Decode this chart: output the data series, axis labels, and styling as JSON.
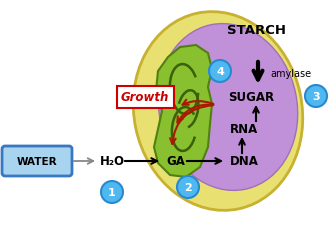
{
  "bg_color": "#ffffff",
  "outer_seed_color": "#e8e070",
  "outer_seed_edge": "#c8b030",
  "inner_seed_color": "#c090d8",
  "inner_seed_edge": "#a070b8",
  "embryo_color": "#88c030",
  "embryo_edge": "#508010",
  "embryo_dark": "#3a6008",
  "water_box_fill": "#a8d4f0",
  "water_box_edge": "#3878c0",
  "circle_fill": "#50b8f0",
  "circle_edge": "#2888d0",
  "growth_box_fill": "#ffffff",
  "growth_box_edge": "#cc0000",
  "growth_text_color": "#cc0000",
  "red_arrow_color": "#aa1800",
  "black": "#000000",
  "gray": "#888888",
  "starch_text": "STARCH",
  "amylase_text": "amylase",
  "sugar_text": "SUGAR",
  "rna_text": "RNA",
  "dna_text": "DNA",
  "h2o_text": "H₂O",
  "ga_text": "GA",
  "water_text": "WATER",
  "growth_text": "Growth",
  "figw": 3.32,
  "figh": 2.28,
  "dpi": 100
}
